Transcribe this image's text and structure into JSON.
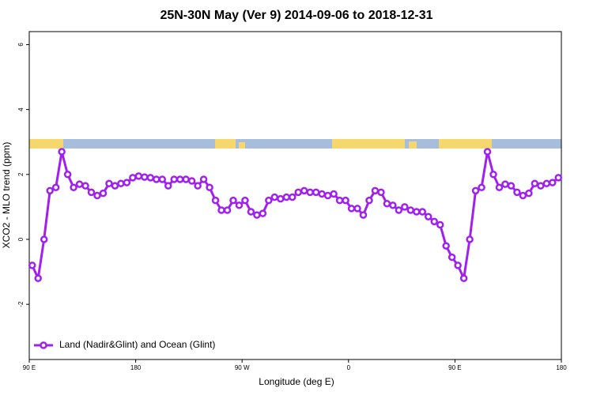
{
  "chart_data": {
    "type": "line",
    "title": "25N-30N May (Ver 9)   2014-09-06 to 2018-12-31",
    "x_label": "Longitude (deg E)",
    "y_label": "XCO2 - MLO trend (ppm)",
    "xlim": [
      90,
      540
    ],
    "ylim": [
      -3.7,
      6.4
    ],
    "xticks": [
      {
        "value": 90,
        "label": "90 E"
      },
      180,
      {
        "value": 270,
        "label": "90 W"
      },
      {
        "value": 360,
        "label": "0"
      },
      {
        "value": 450,
        "label": "90 E"
      },
      {
        "value": 540,
        "label": "180"
      }
    ],
    "yticks": [
      -2,
      0,
      2,
      4,
      6
    ],
    "legend": "bottomleft",
    "x": [
      92.5,
      97.5,
      102.5,
      107.5,
      112.5,
      117.5,
      122.5,
      127.5,
      132.5,
      137.5,
      142.5,
      147.5,
      152.5,
      157.5,
      162.5,
      167.5,
      172.5,
      177.5,
      182.5,
      187.5,
      192.5,
      197.5,
      202.5,
      207.5,
      212.5,
      217.5,
      222.5,
      227.5,
      232.5,
      237.5,
      242.5,
      247.5,
      252.5,
      257.5,
      262.5,
      267.5,
      272.5,
      277.5,
      282.5,
      287.5,
      292.5,
      297.5,
      302.5,
      307.5,
      312.5,
      317.5,
      322.5,
      327.5,
      332.5,
      337.5,
      342.5,
      347.5,
      352.5,
      357.5,
      362.5,
      367.5,
      372.5,
      377.5,
      382.5,
      387.5,
      392.5,
      397.5,
      402.5,
      407.5,
      412.5,
      417.5,
      422.5,
      427.5,
      432.5,
      437.5,
      442.5,
      447.5,
      452.5,
      457.5,
      462.5,
      467.5,
      472.5,
      477.5,
      482.5,
      487.5,
      492.5,
      497.5,
      502.5,
      507.5,
      512.5,
      517.5,
      522.5,
      527.5,
      532.5,
      537.5
    ],
    "series": [
      {
        "name": "Land (Nadir&Glint) and Ocean (Glint)",
        "color": "#a020f0",
        "values": [
          -0.8,
          -1.2,
          0,
          1.5,
          1.6,
          2.7,
          2.0,
          1.6,
          1.7,
          1.65,
          1.45,
          1.35,
          1.42,
          1.72,
          1.65,
          1.72,
          1.75,
          1.9,
          1.95,
          1.92,
          1.9,
          1.85,
          1.85,
          1.65,
          1.85,
          1.85,
          1.85,
          1.8,
          1.65,
          1.85,
          1.6,
          1.2,
          0.9,
          0.9,
          1.2,
          1.05,
          1.2,
          0.85,
          0.75,
          0.8,
          1.2,
          1.3,
          1.25,
          1.3,
          1.3,
          1.45,
          1.5,
          1.45,
          1.45,
          1.4,
          1.35,
          1.4,
          1.2,
          1.2,
          0.95,
          0.95,
          0.75,
          1.2,
          1.5,
          1.45,
          1.1,
          1.05,
          0.9,
          1.0,
          0.9,
          0.85,
          0.85,
          0.7,
          0.55,
          0.45,
          -0.2,
          -0.55,
          -0.8,
          -1.2,
          0,
          1.5,
          1.6,
          2.7,
          2.0,
          1.6,
          1.7,
          1.65,
          1.45,
          1.35,
          1.42,
          1.72,
          1.65,
          1.72,
          1.75,
          1.9
        ]
      }
    ]
  }
}
